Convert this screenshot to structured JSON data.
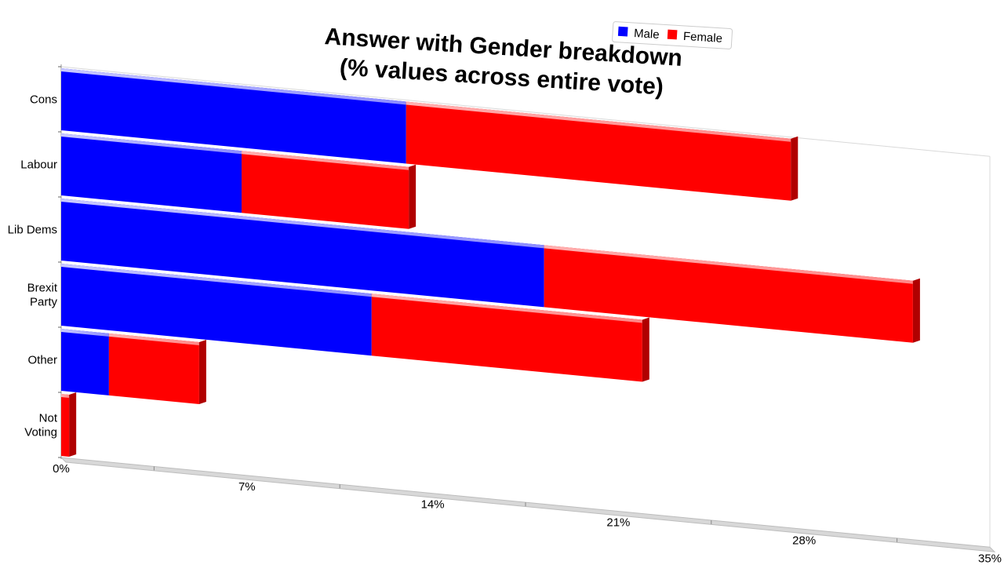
{
  "chart_data": {
    "type": "bar",
    "orientation": "horizontal",
    "stacked": true,
    "title": [
      "Answer with Gender breakdown",
      "(% values across entire vote)"
    ],
    "categories": [
      [
        "Cons"
      ],
      [
        "Labour"
      ],
      [
        "Lib Dems"
      ],
      [
        "Brexit",
        "Party"
      ],
      [
        "Other"
      ],
      [
        "Not",
        "Voting"
      ]
    ],
    "series": [
      {
        "name": "Male",
        "color": "#0000ff",
        "values": [
          13.0,
          6.8,
          18.2,
          11.7,
          1.8,
          0.0
        ]
      },
      {
        "name": "Female",
        "color": "#ff0000",
        "values": [
          14.5,
          6.3,
          13.9,
          10.2,
          3.4,
          0.3
        ]
      }
    ],
    "x_ticks": [
      "0%",
      "7%",
      "14%",
      "21%",
      "28%",
      "35%"
    ],
    "xlim": [
      0,
      35
    ],
    "legend": "top-right",
    "grid": false
  }
}
